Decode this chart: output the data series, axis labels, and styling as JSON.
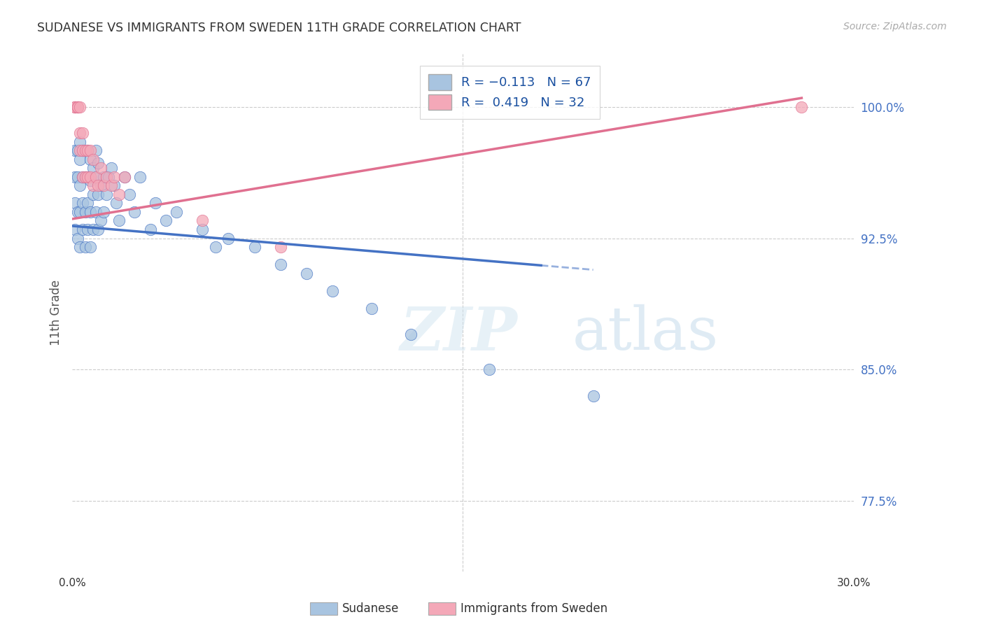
{
  "title": "SUDANESE VS IMMIGRANTS FROM SWEDEN 11TH GRADE CORRELATION CHART",
  "source": "Source: ZipAtlas.com",
  "ylabel": "11th Grade",
  "ylabel_right_ticks": [
    "100.0%",
    "92.5%",
    "85.0%",
    "77.5%"
  ],
  "ylabel_right_vals": [
    1.0,
    0.925,
    0.85,
    0.775
  ],
  "xlim": [
    0.0,
    0.3
  ],
  "ylim": [
    0.735,
    1.03
  ],
  "sudanese_color": "#a8c4e0",
  "sweden_color": "#f4a8b8",
  "trend_blue": "#4472c4",
  "trend_pink": "#e07090",
  "watermark_zip": "ZIP",
  "watermark_atlas": "atlas",
  "blue_trend_x0": 0.0,
  "blue_trend_y0": 0.932,
  "blue_trend_x1": 0.2,
  "blue_trend_y1": 0.907,
  "blue_trend_xsolid_end": 0.18,
  "pink_trend_x0": 0.0,
  "pink_trend_y0": 0.936,
  "pink_trend_x1": 0.28,
  "pink_trend_y1": 1.005,
  "sudanese_x": [
    0.001,
    0.001,
    0.001,
    0.001,
    0.002,
    0.002,
    0.002,
    0.002,
    0.003,
    0.003,
    0.003,
    0.003,
    0.003,
    0.004,
    0.004,
    0.004,
    0.004,
    0.005,
    0.005,
    0.005,
    0.005,
    0.006,
    0.006,
    0.006,
    0.006,
    0.007,
    0.007,
    0.007,
    0.007,
    0.008,
    0.008,
    0.008,
    0.009,
    0.009,
    0.009,
    0.01,
    0.01,
    0.01,
    0.011,
    0.011,
    0.012,
    0.012,
    0.013,
    0.014,
    0.015,
    0.016,
    0.017,
    0.018,
    0.02,
    0.022,
    0.024,
    0.026,
    0.03,
    0.032,
    0.036,
    0.04,
    0.05,
    0.055,
    0.06,
    0.07,
    0.08,
    0.09,
    0.1,
    0.115,
    0.13,
    0.16,
    0.2
  ],
  "sudanese_y": [
    0.93,
    0.945,
    0.96,
    0.975,
    0.925,
    0.94,
    0.96,
    0.975,
    0.92,
    0.94,
    0.955,
    0.97,
    0.98,
    0.93,
    0.945,
    0.96,
    0.975,
    0.92,
    0.94,
    0.96,
    0.975,
    0.93,
    0.945,
    0.96,
    0.975,
    0.92,
    0.94,
    0.958,
    0.97,
    0.93,
    0.95,
    0.965,
    0.94,
    0.96,
    0.975,
    0.93,
    0.95,
    0.968,
    0.935,
    0.955,
    0.94,
    0.96,
    0.95,
    0.96,
    0.965,
    0.955,
    0.945,
    0.935,
    0.96,
    0.95,
    0.94,
    0.96,
    0.93,
    0.945,
    0.935,
    0.94,
    0.93,
    0.92,
    0.925,
    0.92,
    0.91,
    0.905,
    0.895,
    0.885,
    0.87,
    0.85,
    0.835
  ],
  "sweden_x": [
    0.001,
    0.001,
    0.001,
    0.002,
    0.002,
    0.002,
    0.003,
    0.003,
    0.003,
    0.004,
    0.004,
    0.004,
    0.005,
    0.005,
    0.006,
    0.006,
    0.007,
    0.007,
    0.008,
    0.008,
    0.009,
    0.01,
    0.011,
    0.012,
    0.013,
    0.015,
    0.016,
    0.018,
    0.02,
    0.05,
    0.08,
    0.28
  ],
  "sweden_y": [
    1.0,
    1.0,
    1.0,
    1.0,
    1.0,
    1.0,
    1.0,
    0.985,
    0.975,
    0.985,
    0.975,
    0.96,
    0.975,
    0.96,
    0.975,
    0.96,
    0.975,
    0.96,
    0.97,
    0.955,
    0.96,
    0.955,
    0.965,
    0.955,
    0.96,
    0.955,
    0.96,
    0.95,
    0.96,
    0.935,
    0.92,
    1.0
  ]
}
